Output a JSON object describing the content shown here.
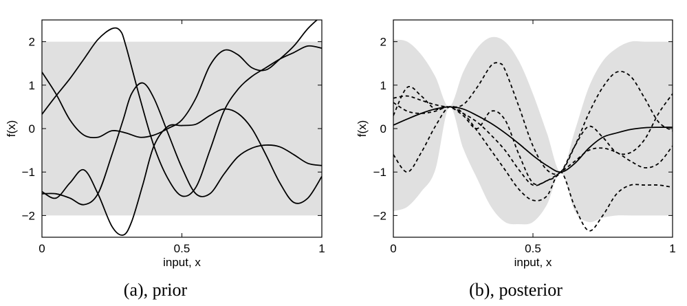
{
  "chart_data": [
    {
      "type": "line",
      "caption": "(a), prior",
      "xlabel": "input, x",
      "ylabel": "f(x)",
      "xlim": [
        0,
        1
      ],
      "ylim": [
        -2.5,
        2.5
      ],
      "xticks": [
        0,
        0.5,
        1
      ],
      "xtick_labels": [
        "0",
        "0.5",
        "1"
      ],
      "yticks": [
        2,
        1,
        0,
        -1,
        -2
      ],
      "ytick_labels": [
        "2",
        "1",
        "0",
        "−1",
        "−2"
      ],
      "grid": false,
      "band": {
        "x": [
          0,
          1
        ],
        "lower": [
          -2,
          -2
        ],
        "upper": [
          2,
          2
        ],
        "color": "#e0e0e0"
      },
      "series": [
        {
          "style": "solid",
          "x": [
            0,
            0.05,
            0.1,
            0.15,
            0.2,
            0.25,
            0.28,
            0.3,
            0.35,
            0.4,
            0.45,
            0.5,
            0.55,
            0.6,
            0.65,
            0.7,
            0.75,
            0.8,
            0.85,
            0.9,
            0.95,
            1
          ],
          "y": [
            0.33,
            0.75,
            1.15,
            1.6,
            2.05,
            2.3,
            2.25,
            1.9,
            0.7,
            -0.4,
            -1.15,
            -1.55,
            -1.35,
            -0.5,
            0.4,
            0.9,
            1.2,
            1.4,
            1.6,
            1.75,
            1.9,
            1.85
          ]
        },
        {
          "style": "solid",
          "x": [
            0,
            0.05,
            0.1,
            0.15,
            0.2,
            0.25,
            0.3,
            0.35,
            0.4,
            0.45,
            0.5,
            0.55,
            0.6,
            0.65,
            0.7,
            0.75,
            0.8,
            0.85,
            0.9,
            0.95,
            1
          ],
          "y": [
            1.3,
            0.8,
            0.2,
            -0.15,
            -0.2,
            -0.05,
            -0.1,
            -0.2,
            -0.15,
            0.0,
            0.2,
            0.7,
            1.45,
            1.8,
            1.7,
            1.4,
            1.35,
            1.6,
            1.9,
            2.3,
            2.6
          ]
        },
        {
          "style": "solid",
          "x": [
            0,
            0.05,
            0.1,
            0.15,
            0.2,
            0.25,
            0.29,
            0.32,
            0.36,
            0.4,
            0.45,
            0.5,
            0.55,
            0.6,
            0.65,
            0.7,
            0.75,
            0.8,
            0.85,
            0.9,
            0.95,
            1
          ],
          "y": [
            -1.5,
            -1.5,
            -1.6,
            -1.75,
            -1.5,
            -0.6,
            0.2,
            0.8,
            1.05,
            0.7,
            -0.1,
            -0.9,
            -1.5,
            -1.5,
            -1.05,
            -0.65,
            -0.45,
            -0.38,
            -0.42,
            -0.6,
            -0.8,
            -0.85
          ]
        },
        {
          "style": "solid",
          "x": [
            0,
            0.05,
            0.1,
            0.15,
            0.2,
            0.25,
            0.29,
            0.32,
            0.36,
            0.4,
            0.45,
            0.5,
            0.55,
            0.6,
            0.65,
            0.7,
            0.75,
            0.8,
            0.85,
            0.9,
            0.95,
            1
          ],
          "y": [
            -1.45,
            -1.6,
            -1.25,
            -0.95,
            -1.5,
            -2.25,
            -2.45,
            -2.15,
            -1.3,
            -0.4,
            0.05,
            0.07,
            0.1,
            0.3,
            0.45,
            0.35,
            0.0,
            -0.6,
            -1.25,
            -1.7,
            -1.6,
            -1.1
          ]
        }
      ]
    },
    {
      "type": "line",
      "caption": "(b), posterior",
      "xlabel": "input, x",
      "ylabel": "f(x)",
      "xlim": [
        0,
        1
      ],
      "ylim": [
        -2.5,
        2.5
      ],
      "xticks": [
        0,
        0.5,
        1
      ],
      "xtick_labels": [
        "0",
        "0.5",
        "1"
      ],
      "yticks": [
        2,
        1,
        0,
        -1,
        -2
      ],
      "ytick_labels": [
        "2",
        "1",
        "0",
        "−1",
        "−2"
      ],
      "grid": false,
      "band": {
        "x": [
          0,
          0.05,
          0.1,
          0.15,
          0.2,
          0.25,
          0.3,
          0.35,
          0.4,
          0.45,
          0.5,
          0.55,
          0.6,
          0.65,
          0.7,
          0.75,
          0.8,
          0.85,
          0.9,
          0.95,
          1
        ],
        "upper": [
          2.05,
          2.0,
          1.7,
          1.2,
          0.5,
          1.3,
          1.85,
          2.1,
          2.0,
          1.55,
          0.8,
          -0.1,
          -1.0,
          -0.05,
          0.95,
          1.55,
          1.85,
          2.0,
          2.0,
          2.0,
          2.0
        ],
        "lower": [
          -1.9,
          -1.8,
          -1.45,
          -0.95,
          0.5,
          -0.45,
          -1.15,
          -1.8,
          -2.15,
          -2.2,
          -2.15,
          -1.75,
          -1.0,
          -1.9,
          -2.15,
          -2.05,
          -2.0,
          -2.0,
          -2.0,
          -2.0,
          -2.0
        ],
        "color": "#e0e0e0"
      },
      "series": [
        {
          "style": "solid",
          "x": [
            0,
            0.05,
            0.1,
            0.15,
            0.2,
            0.25,
            0.3,
            0.35,
            0.4,
            0.45,
            0.5,
            0.55,
            0.6,
            0.65,
            0.7,
            0.75,
            0.8,
            0.85,
            0.9,
            0.95,
            1
          ],
          "y": [
            0.08,
            0.22,
            0.35,
            0.45,
            0.5,
            0.45,
            0.3,
            0.12,
            -0.1,
            -0.35,
            -0.62,
            -0.85,
            -1.0,
            -0.8,
            -0.45,
            -0.2,
            -0.1,
            -0.02,
            0.02,
            0.03,
            0.03
          ]
        },
        {
          "style": "dashed",
          "x": [
            0,
            0.05,
            0.1,
            0.15,
            0.2,
            0.25,
            0.3,
            0.35,
            0.38,
            0.4,
            0.45,
            0.5,
            0.55,
            0.6,
            0.65,
            0.7,
            0.75,
            0.8,
            0.85,
            0.9,
            0.95,
            1
          ],
          "y": [
            0.7,
            0.75,
            0.65,
            0.55,
            0.5,
            0.55,
            0.95,
            1.45,
            1.5,
            1.35,
            0.5,
            -0.4,
            -0.95,
            -1.0,
            -0.4,
            0.35,
            0.95,
            1.3,
            1.2,
            0.7,
            0.15,
            -0.05
          ]
        },
        {
          "style": "dashed",
          "x": [
            0,
            0.05,
            0.1,
            0.15,
            0.2,
            0.25,
            0.3,
            0.35,
            0.4,
            0.45,
            0.5,
            0.55,
            0.6,
            0.65,
            0.7,
            0.75,
            0.8,
            0.85,
            0.9,
            0.95,
            1
          ],
          "y": [
            -0.6,
            -1.0,
            -0.55,
            0.05,
            0.5,
            0.35,
            -0.05,
            -0.5,
            -0.95,
            -1.4,
            -1.65,
            -1.55,
            -1.0,
            -1.8,
            -2.35,
            -2.0,
            -1.5,
            -1.3,
            -1.3,
            -1.3,
            -1.35
          ]
        },
        {
          "style": "dashed",
          "x": [
            0,
            0.05,
            0.1,
            0.15,
            0.2,
            0.25,
            0.3,
            0.35,
            0.4,
            0.45,
            0.5,
            0.55,
            0.6,
            0.65,
            0.7,
            0.75,
            0.8,
            0.85,
            0.9,
            0.95,
            1
          ],
          "y": [
            0.3,
            0.95,
            0.75,
            0.45,
            0.5,
            0.3,
            0.0,
            0.4,
            0.2,
            -0.6,
            -1.25,
            -1.2,
            -1.0,
            -0.4,
            0.05,
            -0.2,
            -0.55,
            -0.55,
            -0.25,
            0.35,
            0.8
          ]
        },
        {
          "style": "dashed",
          "x": [
            0,
            0.05,
            0.1,
            0.15,
            0.2,
            0.25,
            0.3,
            0.35,
            0.4,
            0.45,
            0.5,
            0.55,
            0.6,
            0.65,
            0.7,
            0.75,
            0.8,
            0.85,
            0.9,
            0.95,
            1
          ],
          "y": [
            0.6,
            0.4,
            0.35,
            0.4,
            0.5,
            0.35,
            0.15,
            -0.15,
            -0.5,
            -0.95,
            -1.3,
            -1.2,
            -1.0,
            -0.75,
            -0.5,
            -0.45,
            -0.55,
            -0.75,
            -0.9,
            -0.8,
            -0.4
          ]
        }
      ]
    }
  ]
}
